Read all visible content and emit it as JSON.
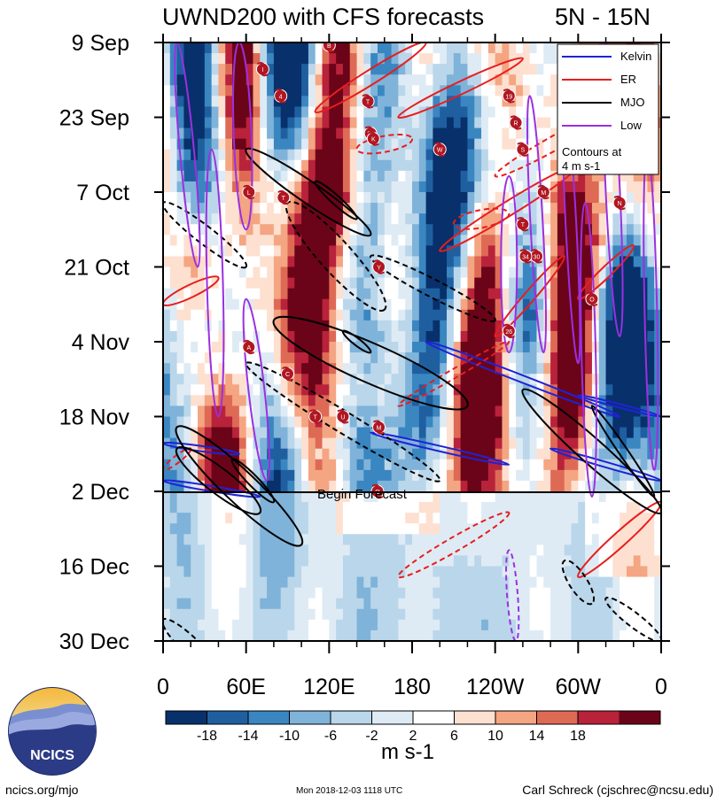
{
  "chart_data": {
    "type": "heatmap",
    "title": "UWND200 with CFS forecasts",
    "region": "5N - 15N",
    "y_tick_labels": [
      "9 Sep",
      "23 Sep",
      "7 Oct",
      "21 Oct",
      "4 Nov",
      "18 Nov",
      "2 Dec",
      "16 Dec",
      "30 Dec"
    ],
    "x_tick_labels": [
      "0",
      "60E",
      "120E",
      "180",
      "120W",
      "60W",
      "0"
    ],
    "x_range_deg": [
      0,
      360
    ],
    "time_range": [
      "9 Sep",
      "30 Dec"
    ],
    "colorbar": {
      "tick_labels": [
        "-18",
        "-14",
        "-10",
        "-6",
        "-2",
        "2",
        "6",
        "10",
        "14",
        "18"
      ],
      "boundaries": [
        -22,
        -18,
        -14,
        -10,
        -6,
        -2,
        2,
        6,
        10,
        14,
        18,
        22
      ],
      "colors": [
        "#08306b",
        "#1f5fa0",
        "#3a86c1",
        "#7fb3d9",
        "#bad6ea",
        "#deebf5",
        "#ffffff",
        "#fde0d0",
        "#f4a582",
        "#de6a56",
        "#b8223a",
        "#6b0418"
      ],
      "units": "m s-1"
    },
    "legend": {
      "position": "top-right",
      "entries": [
        {
          "label": "Kelvin",
          "color": "#1d23d6",
          "style": "solid"
        },
        {
          "label": "ER",
          "color": "#e81d1d",
          "style": "solid"
        },
        {
          "label": "MJO",
          "color": "#000000",
          "style": "solid"
        },
        {
          "label": "Low",
          "color": "#9b30e0",
          "style": "solid"
        }
      ],
      "note_line1": "Contours at",
      "note_line2": "4 m s-1"
    },
    "forecast_start": {
      "label": "Begin Forecast",
      "date": "2 Dec"
    },
    "tropical_cyclone_labels": [
      "B",
      "I",
      "4",
      "T",
      "28",
      "K",
      "W",
      "19",
      "R",
      "S",
      "M",
      "L",
      "T",
      "N",
      "T",
      "30",
      "34",
      "Y",
      "O",
      "26",
      "A",
      "C",
      "T",
      "U",
      "M",
      "O"
    ]
  },
  "logo": {
    "text": "NCICS"
  },
  "footer": {
    "url": "ncics.org/mjo",
    "timestamp": "Mon 2018-12-03 1118 UTC",
    "author": "Carl Schreck (cjschrec@ncsu.edu)"
  }
}
